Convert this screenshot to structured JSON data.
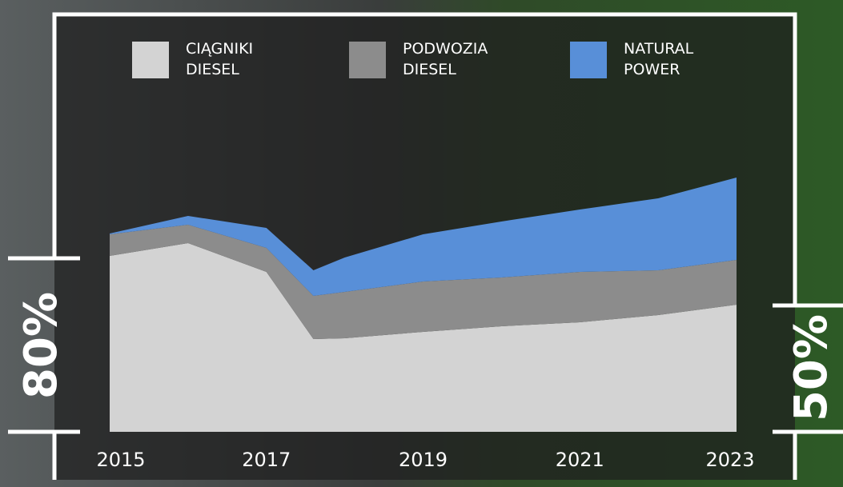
{
  "chart_data": {
    "type": "stacked-area",
    "x": [
      2015,
      2016,
      2017,
      2017.6,
      2018,
      2019,
      2020,
      2021,
      2022,
      2023
    ],
    "series": [
      {
        "name": "CIĄGNIKI DIESEL",
        "color": "#d3d3d3",
        "values": [
          220,
          236,
          200,
          116,
          117,
          125,
          132,
          137,
          146,
          159
        ]
      },
      {
        "name": "PODWOZIA DIESEL",
        "color": "#8c8c8c",
        "values": [
          27,
          23,
          30,
          54,
          58,
          63,
          61,
          63,
          56,
          56
        ]
      },
      {
        "name": "NATURAL POWER",
        "color": "#588fd8",
        "values": [
          1,
          11,
          25,
          32,
          43,
          59,
          70,
          78,
          90,
          103
        ]
      }
    ],
    "xlim": [
      2015,
      2023
    ],
    "xticks": [
      2015,
      2017,
      2019,
      2021,
      2023
    ],
    "ylim": [
      0,
      320
    ],
    "annotations": [
      "80%",
      "50%"
    ]
  }
}
